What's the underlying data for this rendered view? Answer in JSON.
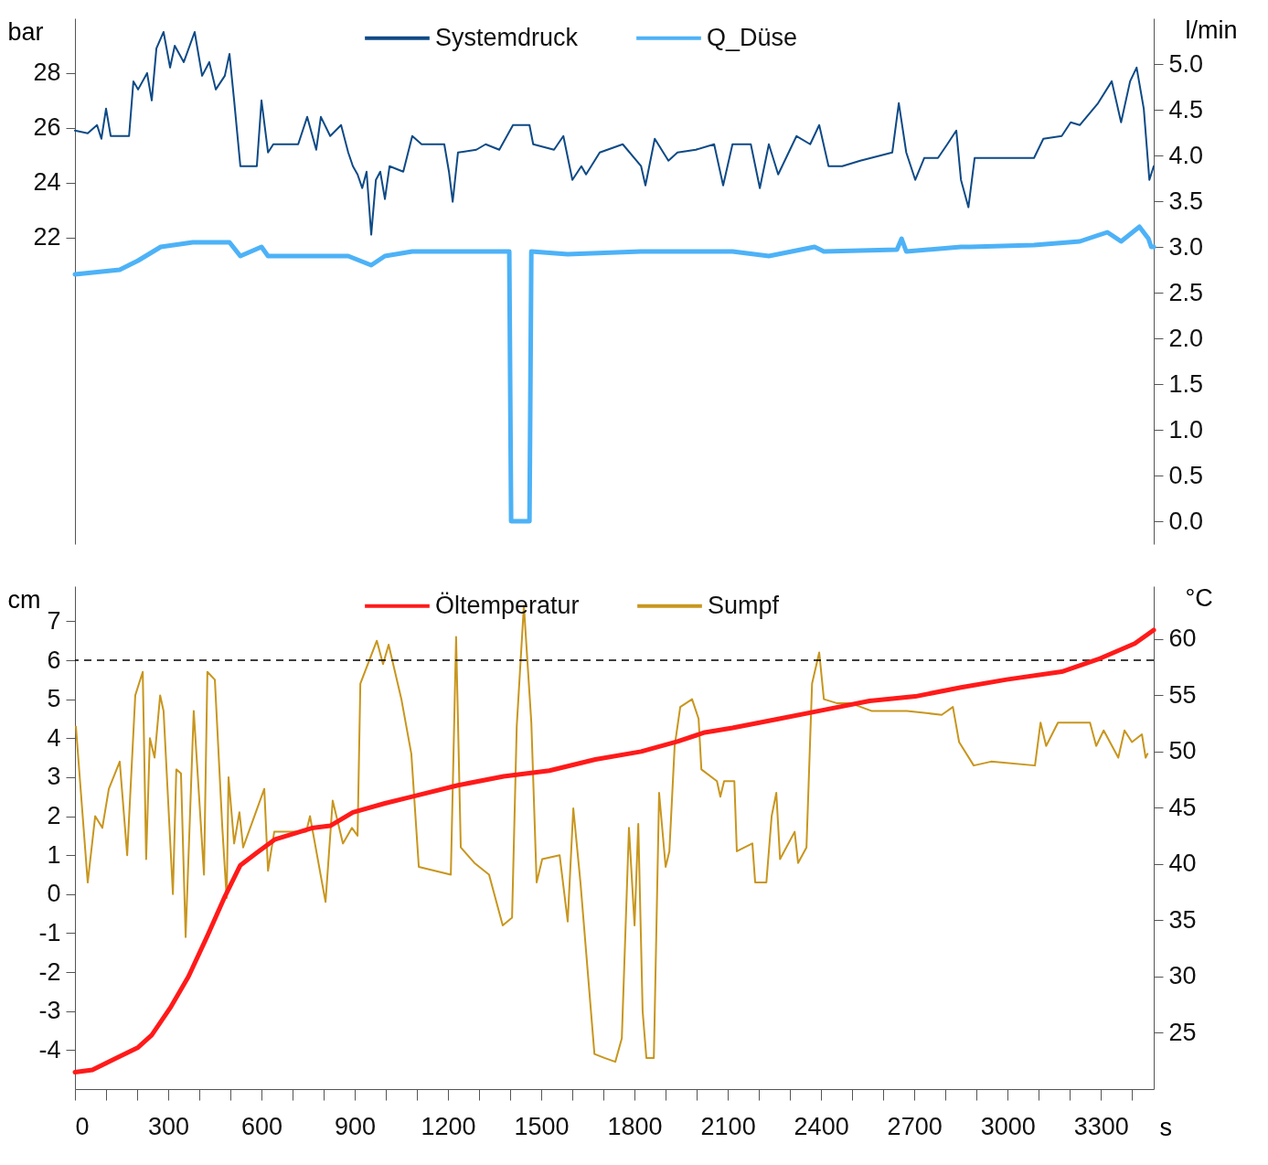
{
  "chart_data": [
    {
      "type": "line",
      "ylabel": "bar",
      "y2label": "l/min",
      "legend": "top",
      "tick_labels": "y",
      "xlim": [
        0,
        3470
      ],
      "ylim": [
        10.8,
        30
      ],
      "yticks": [
        22,
        24,
        26,
        28
      ],
      "y2lim": [
        -0.25,
        5.5
      ],
      "y2ticks": [
        {
          "value": 0,
          "label": "0.0"
        },
        0.5,
        {
          "value": 1,
          "label": "1.0"
        },
        1.5,
        {
          "value": 2,
          "label": "2.0"
        },
        2.5,
        {
          "value": 3,
          "label": "3.0"
        },
        3.5,
        {
          "value": 4,
          "label": "4.0"
        },
        4.5,
        {
          "value": 5,
          "label": "5.0"
        }
      ],
      "series": [
        {
          "name": "Systemdruck",
          "color": "#0e4a86",
          "x": [
            0,
            41,
            71,
            85,
            100,
            115,
            174,
            188,
            203,
            232,
            247,
            262,
            285,
            306,
            321,
            350,
            385,
            409,
            432,
            453,
            482,
            497,
            512,
            532,
            585,
            600,
            621,
            638,
            718,
            747,
            776,
            791,
            821,
            856,
            879,
            894,
            909,
            924,
            938,
            953,
            968,
            982,
            997,
            1012,
            1056,
            1085,
            1115,
            1188,
            1203,
            1215,
            1232,
            1291,
            1321,
            1365,
            1409,
            1462,
            1474,
            1541,
            1571,
            1600,
            1629,
            1644,
            1688,
            1762,
            1821,
            1835,
            1865,
            1909,
            1938,
            1997,
            2056,
            2085,
            2115,
            2174,
            2203,
            2232,
            2262,
            2321,
            2365,
            2394,
            2424,
            2468,
            2526,
            2629,
            2650,
            2674,
            2703,
            2732,
            2776,
            2806,
            2835,
            2850,
            2874,
            2894,
            3085,
            3115,
            3174,
            3203,
            3232,
            3291,
            3335,
            3365,
            3394,
            3415,
            3438,
            3456,
            3470
          ],
          "values": [
            25.9,
            25.8,
            26.1,
            25.6,
            26.7,
            25.7,
            25.7,
            27.7,
            27.4,
            28.0,
            27.0,
            28.9,
            29.5,
            28.2,
            29.0,
            28.4,
            29.5,
            27.9,
            28.4,
            27.4,
            27.9,
            28.7,
            27.0,
            24.6,
            24.6,
            27.0,
            25.1,
            25.4,
            25.4,
            26.4,
            25.2,
            26.4,
            25.7,
            26.1,
            25.1,
            24.6,
            24.3,
            23.8,
            24.4,
            22.1,
            24.1,
            24.4,
            23.4,
            24.6,
            24.4,
            25.7,
            25.4,
            25.4,
            24.4,
            23.3,
            25.1,
            25.2,
            25.4,
            25.2,
            26.1,
            26.1,
            25.4,
            25.2,
            25.7,
            24.1,
            24.6,
            24.3,
            25.1,
            25.4,
            24.6,
            23.9,
            25.6,
            24.8,
            25.1,
            25.2,
            25.4,
            23.9,
            25.4,
            25.4,
            23.8,
            25.4,
            24.3,
            25.7,
            25.4,
            26.1,
            24.6,
            24.6,
            24.8,
            25.1,
            26.9,
            25.1,
            24.1,
            24.9,
            24.9,
            25.4,
            25.9,
            24.1,
            23.1,
            24.9,
            24.9,
            25.6,
            25.7,
            26.2,
            26.1,
            26.9,
            27.7,
            26.2,
            27.7,
            28.2,
            26.7,
            24.1,
            24.6
          ]
        },
        {
          "name": "Q_Düse",
          "color": "#4db2f7",
          "axis": "y2",
          "x": [
            0,
            144,
            203,
            276,
            379,
            497,
            532,
            600,
            621,
            879,
            953,
            997,
            1085,
            1379,
            1397,
            1403,
            1462,
            1468,
            1585,
            1821,
            2115,
            2232,
            2379,
            2409,
            2644,
            2659,
            2674,
            2850,
            2879,
            3085,
            3232,
            3321,
            3365,
            3424,
            3453,
            3462,
            3470
          ],
          "values": [
            2.7,
            2.75,
            2.85,
            3.0,
            3.05,
            3.05,
            2.9,
            3.0,
            2.9,
            2.9,
            2.8,
            2.9,
            2.95,
            2.95,
            2.95,
            0,
            0,
            2.95,
            2.92,
            2.95,
            2.95,
            2.9,
            3.0,
            2.95,
            2.97,
            3.09,
            2.95,
            3.0,
            3.0,
            3.02,
            3.06,
            3.16,
            3.06,
            3.22,
            3.09,
            3.0,
            3.0
          ]
        }
      ]
    },
    {
      "type": "line",
      "ylabel": "cm",
      "y2label": "°C",
      "xlabel": "s",
      "legend": "top",
      "xlim": [
        0,
        3470
      ],
      "xticks": [
        0,
        {
          "value": 100,
          "label": null
        },
        {
          "value": 200,
          "label": null
        },
        300,
        {
          "value": 400,
          "label": null
        },
        {
          "value": 500,
          "label": null
        },
        600,
        {
          "value": 700,
          "label": null
        },
        {
          "value": 800,
          "label": null
        },
        900,
        {
          "value": 1000,
          "label": null
        },
        {
          "value": 1100,
          "label": null
        },
        1200,
        {
          "value": 1300,
          "label": null
        },
        {
          "value": 1400,
          "label": null
        },
        1500,
        {
          "value": 1600,
          "label": null
        },
        {
          "value": 1700,
          "label": null
        },
        1800,
        {
          "value": 1900,
          "label": null
        },
        {
          "value": 2000,
          "label": null
        },
        2100,
        {
          "value": 2200,
          "label": null
        },
        {
          "value": 2300,
          "label": null
        },
        2400,
        {
          "value": 2500,
          "label": null
        },
        {
          "value": 2600,
          "label": null
        },
        2700,
        {
          "value": 2800,
          "label": null
        },
        {
          "value": 2900,
          "label": null
        },
        3000,
        {
          "value": 3100,
          "label": null
        },
        {
          "value": 3200,
          "label": null
        },
        3300,
        {
          "value": 3400,
          "label": null
        }
      ],
      "ylim": [
        -5,
        7.9
      ],
      "yticks": [
        {
          "value": -4,
          "label": "-4"
        },
        {
          "value": -3,
          "label": "-3"
        },
        {
          "value": -2,
          "label": "-2"
        },
        {
          "value": -1,
          "label": "-1"
        },
        0,
        1,
        2,
        3,
        4,
        5,
        6,
        7
      ],
      "y2lim": [
        20,
        64.7
      ],
      "y2ticks": [
        25,
        30,
        35,
        40,
        45,
        50,
        55,
        60
      ],
      "ref_lines": [
        {
          "axis": "y",
          "value": 6,
          "color": "#000000",
          "line_style": "dashed"
        }
      ],
      "series": [
        {
          "name": "Öltemperatur",
          "color": "#ff1a1a",
          "axis": "y2",
          "x": [
            0,
            56,
            144,
            203,
            247,
            306,
            365,
            424,
            482,
            532,
            585,
            644,
            762,
            821,
            894,
            997,
            1085,
            1232,
            1379,
            1526,
            1674,
            1821,
            1938,
            2026,
            2115,
            2262,
            2409,
            2556,
            2703,
            2850,
            2997,
            3174,
            3291,
            3409,
            3470
          ],
          "values": [
            21.5,
            21.7,
            22.9,
            23.7,
            24.8,
            27.2,
            30.0,
            33.5,
            37.1,
            39.9,
            41.0,
            42.2,
            43.2,
            43.4,
            44.6,
            45.4,
            46.0,
            47.0,
            47.8,
            48.3,
            49.3,
            50.0,
            50.9,
            51.7,
            52.1,
            52.9,
            53.7,
            54.5,
            54.9,
            55.7,
            56.4,
            57.1,
            58.2,
            59.6,
            60.8
          ]
        },
        {
          "name": "Sumpf",
          "color": "#c8961e",
          "x": [
            3,
            41,
            65,
            88,
            109,
            144,
            168,
            194,
            218,
            229,
            241,
            256,
            274,
            285,
            315,
            326,
            341,
            356,
            382,
            415,
            426,
            450,
            474,
            488,
            494,
            512,
            529,
            541,
            609,
            621,
            641,
            744,
            756,
            806,
            829,
            862,
            891,
            909,
            918,
            971,
            991,
            1009,
            1050,
            1082,
            1106,
            1209,
            1226,
            1241,
            1285,
            1332,
            1376,
            1406,
            1421,
            1444,
            1468,
            1485,
            1503,
            1559,
            1585,
            1603,
            1626,
            1671,
            1703,
            1738,
            1759,
            1782,
            1800,
            1812,
            1826,
            1838,
            1862,
            1879,
            1900,
            1912,
            1929,
            1947,
            1985,
            2006,
            2015,
            2065,
            2076,
            2088,
            2121,
            2129,
            2179,
            2188,
            2224,
            2241,
            2256,
            2268,
            2315,
            2326,
            2353,
            2371,
            2394,
            2409,
            2450,
            2494,
            2562,
            2676,
            2788,
            2824,
            2844,
            2891,
            2947,
            3088,
            3106,
            3124,
            3162,
            3265,
            3285,
            3309,
            3356,
            3376,
            3400,
            3432,
            3444,
            3450
          ],
          "values": [
            4.3,
            0.3,
            2.0,
            1.7,
            2.7,
            3.4,
            1.0,
            5.1,
            5.7,
            0.9,
            4.0,
            3.5,
            5.1,
            4.7,
            0.0,
            3.2,
            3.1,
            -1.1,
            4.7,
            0.5,
            5.7,
            5.5,
            1.7,
            -0.1,
            3.0,
            1.3,
            2.1,
            1.2,
            2.7,
            0.6,
            1.6,
            1.6,
            2.0,
            -0.2,
            2.4,
            1.3,
            1.7,
            1.5,
            5.4,
            6.5,
            5.9,
            6.4,
            5.0,
            3.6,
            0.7,
            0.5,
            6.6,
            1.2,
            0.8,
            0.5,
            -0.8,
            -0.6,
            4.3,
            7.4,
            4.4,
            0.3,
            0.9,
            1.0,
            -0.7,
            2.2,
            0.3,
            -4.1,
            -4.2,
            -4.3,
            -3.7,
            1.7,
            -0.8,
            1.8,
            -3.0,
            -4.2,
            -4.2,
            2.6,
            0.7,
            1.1,
            3.8,
            4.8,
            5.0,
            4.5,
            3.2,
            2.9,
            2.5,
            2.9,
            2.9,
            1.1,
            1.3,
            0.3,
            0.3,
            2.0,
            2.6,
            0.9,
            1.6,
            0.8,
            1.2,
            5.4,
            6.2,
            5.0,
            4.9,
            4.9,
            4.7,
            4.7,
            4.6,
            4.8,
            3.9,
            3.3,
            3.4,
            3.3,
            4.4,
            3.8,
            4.4,
            4.4,
            3.8,
            4.2,
            3.5,
            4.2,
            3.9,
            4.1,
            3.5,
            3.6
          ]
        }
      ]
    }
  ]
}
